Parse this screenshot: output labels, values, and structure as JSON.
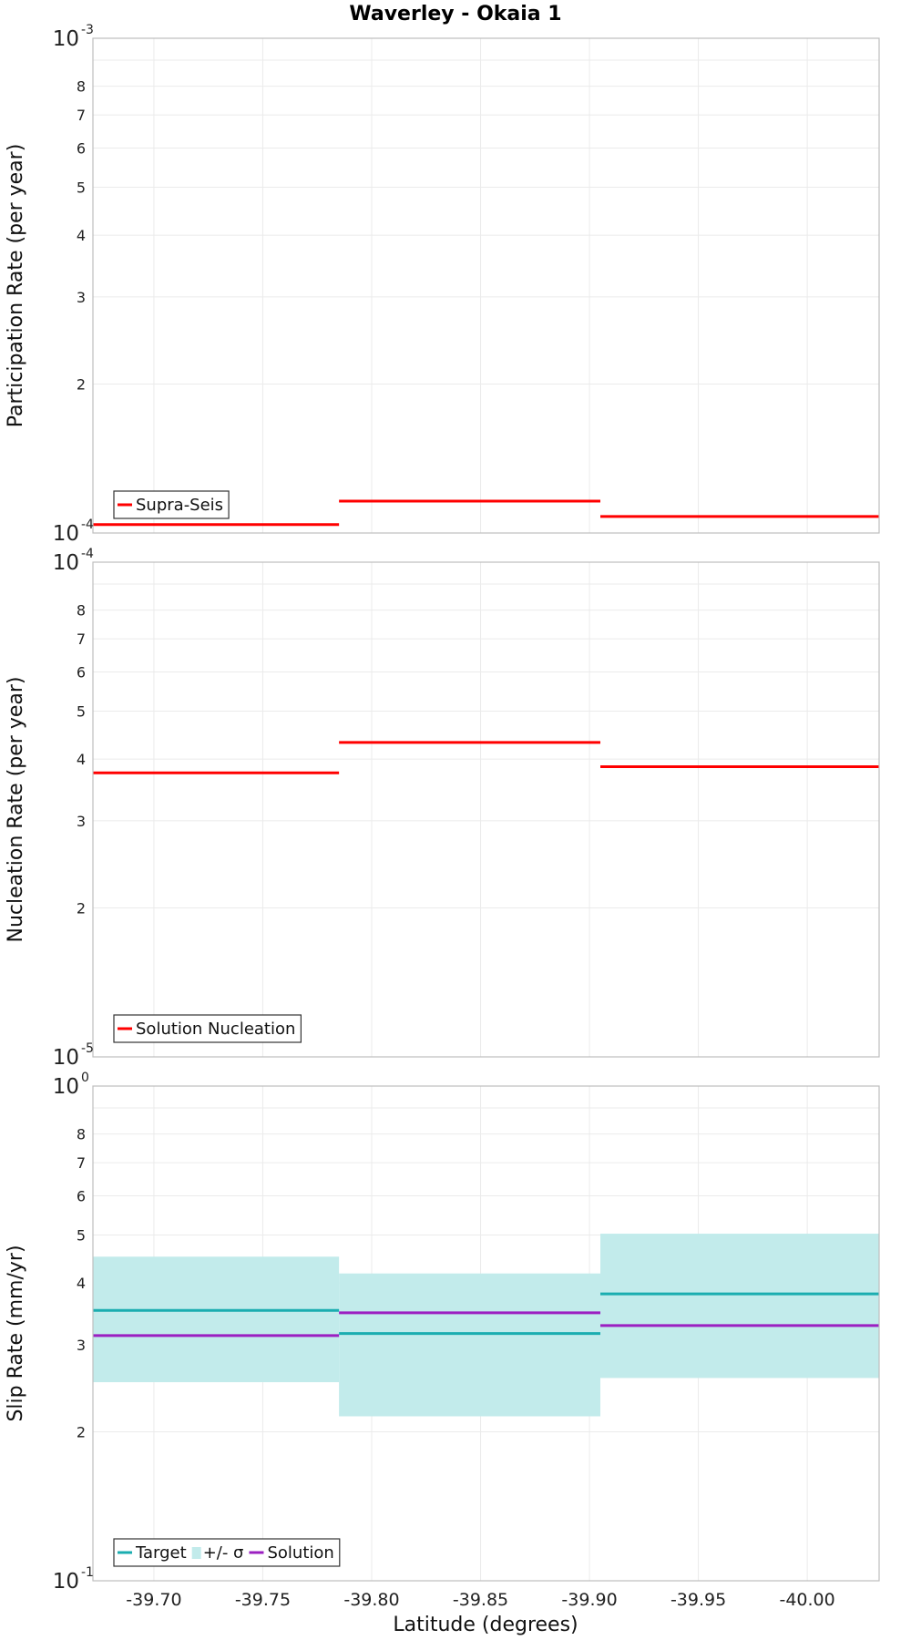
{
  "chart_data": [
    {
      "type": "line",
      "title": "Waverley - Okaia 1",
      "xlabel": "Latitude (degrees)",
      "ylabel": "Participation Rate (per year)",
      "yscale": "log",
      "ylim": [
        0.0001,
        0.001
      ],
      "xlim": [
        -39.672,
        -40.033
      ],
      "minor_ticks": [
        "2",
        "3",
        "4",
        "5",
        "6",
        "7",
        "8"
      ],
      "decade_labels": [
        {
          "base": "10",
          "exp": "-4"
        },
        {
          "base": "10",
          "exp": "-3"
        }
      ],
      "series": [
        {
          "name": "Supra-Seis",
          "color": "#ff0000",
          "segments": [
            [
              -39.672,
              -39.785,
              0.000104
            ],
            [
              -39.785,
              -39.905,
              0.000116
            ],
            [
              -39.905,
              -40.033,
              0.000108
            ]
          ]
        }
      ],
      "legend": [
        {
          "label": "Supra-Seis",
          "color": "#ff0000",
          "kind": "line"
        }
      ]
    },
    {
      "type": "line",
      "ylabel": "Nucleation Rate (per year)",
      "yscale": "log",
      "ylim": [
        1e-05,
        0.0001
      ],
      "xlim": [
        -39.672,
        -40.033
      ],
      "minor_ticks": [
        "2",
        "3",
        "4",
        "5",
        "6",
        "7",
        "8"
      ],
      "decade_labels": [
        {
          "base": "10",
          "exp": "-5"
        },
        {
          "base": "10",
          "exp": "-4"
        }
      ],
      "series": [
        {
          "name": "Solution Nucleation",
          "color": "#ff0000",
          "segments": [
            [
              -39.672,
              -39.785,
              3.75e-05
            ],
            [
              -39.785,
              -39.905,
              4.32e-05
            ],
            [
              -39.905,
              -40.033,
              3.86e-05
            ]
          ]
        }
      ],
      "legend": [
        {
          "label": "Solution Nucleation",
          "color": "#ff0000",
          "kind": "line"
        }
      ]
    },
    {
      "type": "line",
      "xlabel": "Latitude (degrees)",
      "ylabel": "Slip Rate (mm/yr)",
      "yscale": "log",
      "ylim": [
        0.1,
        1
      ],
      "xlim": [
        -39.672,
        -40.033
      ],
      "xticks": [
        "-39.70",
        "-39.75",
        "-39.80",
        "-39.85",
        "-39.90",
        "-39.95",
        "-40.00"
      ],
      "minor_ticks": [
        "2",
        "3",
        "4",
        "5",
        "6",
        "7",
        "8"
      ],
      "decade_labels": [
        {
          "base": "10",
          "exp": "-1"
        },
        {
          "base": "10",
          "exp": "0"
        }
      ],
      "series": [
        {
          "name": "Target",
          "color": "#1aadb0",
          "segments": [
            [
              -39.672,
              -39.785,
              0.352
            ],
            [
              -39.785,
              -39.905,
              0.316
            ],
            [
              -39.905,
              -40.033,
              0.38
            ]
          ]
        },
        {
          "name": "Solution",
          "color": "#9b1fc1",
          "segments": [
            [
              -39.672,
              -39.785,
              0.313
            ],
            [
              -39.785,
              -39.905,
              0.348
            ],
            [
              -39.905,
              -40.033,
              0.328
            ]
          ]
        }
      ],
      "bands": [
        {
          "name": "+/- σ",
          "color": "#c2ebeb",
          "segments": [
            [
              -39.672,
              -39.785,
              0.252,
              0.452
            ],
            [
              -39.785,
              -39.905,
              0.215,
              0.418
            ],
            [
              -39.905,
              -40.033,
              0.257,
              0.503
            ]
          ]
        }
      ],
      "legend": [
        {
          "label": "Target",
          "color": "#1aadb0",
          "kind": "line"
        },
        {
          "label": "+/- σ",
          "color": "#c2ebeb",
          "kind": "band"
        },
        {
          "label": "Solution",
          "color": "#9b1fc1",
          "kind": "line"
        }
      ]
    }
  ]
}
